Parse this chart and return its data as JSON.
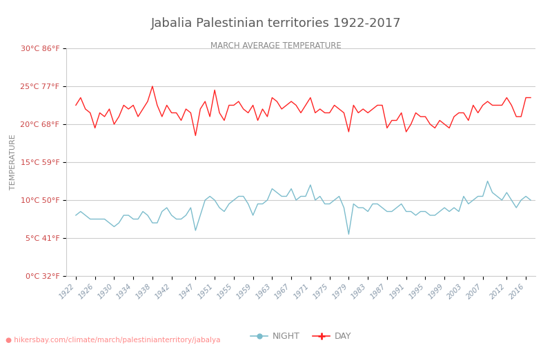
{
  "title": "Jabalia Palestinian territories 1922-2017",
  "subtitle": "MARCH AVERAGE TEMPERATURE",
  "ylabel": "TEMPERATURE",
  "xlabel_url": "hikersbay.com/climate/march/palestinianterritory/jabalya",
  "title_color": "#5a5a5a",
  "subtitle_color": "#8a8a8a",
  "bg_color": "#ffffff",
  "grid_color": "#cccccc",
  "day_color": "#ff2222",
  "night_color": "#7bbccc",
  "ylim": [
    0,
    30
  ],
  "yticks_c": [
    0,
    5,
    10,
    15,
    20,
    25,
    30
  ],
  "yticks_f": [
    32,
    41,
    50,
    59,
    68,
    77,
    86
  ],
  "years": [
    1922,
    1923,
    1924,
    1925,
    1926,
    1927,
    1928,
    1929,
    1930,
    1931,
    1932,
    1933,
    1934,
    1935,
    1936,
    1937,
    1938,
    1939,
    1940,
    1941,
    1942,
    1943,
    1944,
    1945,
    1946,
    1947,
    1948,
    1949,
    1950,
    1951,
    1952,
    1953,
    1954,
    1955,
    1956,
    1957,
    1958,
    1959,
    1960,
    1961,
    1962,
    1963,
    1964,
    1965,
    1966,
    1967,
    1968,
    1969,
    1970,
    1971,
    1972,
    1973,
    1974,
    1975,
    1976,
    1977,
    1978,
    1979,
    1980,
    1981,
    1982,
    1983,
    1984,
    1985,
    1986,
    1987,
    1988,
    1989,
    1990,
    1991,
    1992,
    1993,
    1994,
    1995,
    1996,
    1997,
    1998,
    1999,
    2000,
    2001,
    2002,
    2003,
    2004,
    2005,
    2006,
    2007,
    2008,
    2009,
    2010,
    2011,
    2012,
    2013,
    2014,
    2015,
    2016,
    2017
  ],
  "day_temps": [
    22.5,
    23.5,
    22.0,
    21.5,
    19.5,
    21.5,
    21.0,
    22.0,
    20.0,
    21.0,
    22.5,
    22.0,
    22.5,
    21.0,
    22.0,
    23.0,
    25.0,
    22.5,
    21.0,
    22.5,
    21.5,
    21.5,
    20.5,
    22.0,
    21.5,
    18.5,
    22.0,
    23.0,
    21.0,
    24.5,
    21.5,
    20.5,
    22.5,
    22.5,
    23.0,
    22.0,
    21.5,
    22.5,
    20.5,
    22.0,
    21.0,
    23.5,
    23.0,
    22.0,
    22.5,
    23.0,
    22.5,
    21.5,
    22.5,
    23.5,
    21.5,
    22.0,
    21.5,
    21.5,
    22.5,
    22.0,
    21.5,
    19.0,
    22.5,
    21.5,
    22.0,
    21.5,
    22.0,
    22.5,
    22.5,
    19.5,
    20.5,
    20.5,
    21.5,
    19.0,
    20.0,
    21.5,
    21.0,
    21.0,
    20.0,
    19.5,
    20.5,
    20.0,
    19.5,
    21.0,
    21.5,
    21.5,
    20.5,
    22.5,
    21.5,
    22.5,
    23.0,
    22.5,
    22.5,
    22.5,
    23.5,
    22.5,
    21.0,
    21.0,
    23.5,
    23.5
  ],
  "night_temps": [
    8.0,
    8.5,
    8.0,
    7.5,
    7.5,
    7.5,
    7.5,
    7.0,
    6.5,
    7.0,
    8.0,
    8.0,
    7.5,
    7.5,
    8.5,
    8.0,
    7.0,
    7.0,
    8.5,
    9.0,
    8.0,
    7.5,
    7.5,
    8.0,
    9.0,
    6.0,
    8.0,
    10.0,
    10.5,
    10.0,
    9.0,
    8.5,
    9.5,
    10.0,
    10.5,
    10.5,
    9.5,
    8.0,
    9.5,
    9.5,
    10.0,
    11.5,
    11.0,
    10.5,
    10.5,
    11.5,
    10.0,
    10.5,
    10.5,
    12.0,
    10.0,
    10.5,
    9.5,
    9.5,
    10.0,
    10.5,
    9.0,
    5.5,
    9.5,
    9.0,
    9.0,
    8.5,
    9.5,
    9.5,
    9.0,
    8.5,
    8.5,
    9.0,
    9.5,
    8.5,
    8.5,
    8.0,
    8.5,
    8.5,
    8.0,
    8.0,
    8.5,
    9.0,
    8.5,
    9.0,
    8.5,
    10.5,
    9.5,
    10.0,
    10.5,
    10.5,
    12.5,
    11.0,
    10.5,
    10.0,
    11.0,
    10.0,
    9.0,
    10.0,
    10.5,
    10.0
  ],
  "xtick_years": [
    1922,
    1926,
    1930,
    1934,
    1938,
    1942,
    1947,
    1951,
    1955,
    1959,
    1963,
    1967,
    1971,
    1975,
    1979,
    1983,
    1987,
    1991,
    1995,
    1999,
    2003,
    2007,
    2012,
    2016
  ],
  "legend_night_color": "#7bbccc",
  "legend_day_color": "#ff2222",
  "url_color": "#ff8888",
  "spine_color": "#cccccc",
  "ytick_color": "#cc4444"
}
